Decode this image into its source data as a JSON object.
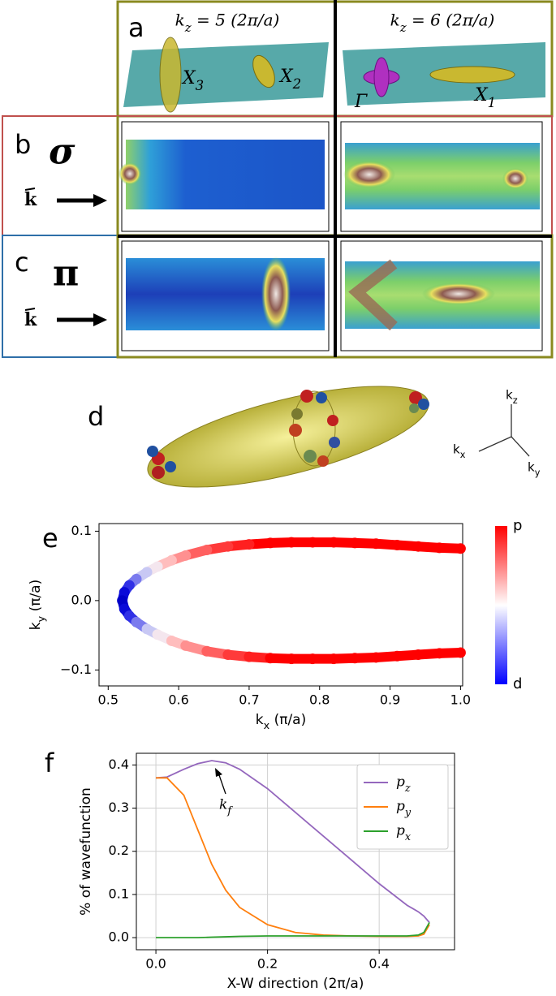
{
  "panels": {
    "a": {
      "label": "a",
      "titles": [
        "k_z = 5 (2π/a)",
        "k_z = 6 (2π/a)"
      ],
      "points": [
        "X_3",
        "X_2",
        "Γ",
        "X_1"
      ]
    },
    "b": {
      "label": "b",
      "symbol": "σ",
      "vector": "k"
    },
    "c": {
      "label": "c",
      "symbol": "π",
      "vector": "k"
    },
    "d": {
      "label": "d",
      "axes": [
        "k_z",
        "k_x",
        "k_y"
      ]
    },
    "e": {
      "label": "e"
    },
    "f": {
      "label": "f"
    }
  },
  "chart_data": [
    {
      "type": "scatter",
      "xlabel": "k_x (π/a)",
      "ylabel": "k_y (π/a)",
      "x": [
        1.0,
        0.97,
        0.94,
        0.91,
        0.88,
        0.85,
        0.82,
        0.79,
        0.76,
        0.73,
        0.7,
        0.67,
        0.64,
        0.61,
        0.59,
        0.57,
        0.555,
        0.54,
        0.53,
        0.523,
        0.52,
        0.523,
        0.53,
        0.54,
        0.555,
        0.57,
        0.59,
        0.61,
        0.64,
        0.67,
        0.7,
        0.73,
        0.76,
        0.79,
        0.82,
        0.85,
        0.88,
        0.91,
        0.94,
        0.97,
        1.0
      ],
      "values": [
        0.075,
        0.076,
        0.078,
        0.08,
        0.082,
        0.083,
        0.084,
        0.084,
        0.084,
        0.083,
        0.081,
        0.078,
        0.073,
        0.065,
        0.058,
        0.049,
        0.041,
        0.031,
        0.022,
        0.012,
        0.0,
        -0.012,
        -0.022,
        -0.031,
        -0.041,
        -0.049,
        -0.058,
        -0.065,
        -0.073,
        -0.078,
        -0.081,
        -0.083,
        -0.084,
        -0.084,
        -0.084,
        -0.083,
        -0.082,
        -0.08,
        -0.078,
        -0.076,
        -0.075
      ],
      "colors": [
        "#ff0000",
        "#ff0000",
        "#ff0000",
        "#ff0000",
        "#ff0000",
        "#ff0000",
        "#ff0000",
        "#ff0000",
        "#ff0000",
        "#ff0000",
        "#ff2020",
        "#ff3a3a",
        "#ff6060",
        "#ff9090",
        "#ffbdbd",
        "#f4e6ee",
        "#c8c8f4",
        "#7a7aee",
        "#3030e6",
        "#0a0ad8",
        "#0000c8",
        "#0a0ad8",
        "#3030e6",
        "#7a7aee",
        "#c8c8f4",
        "#f4e6ee",
        "#ffbdbd",
        "#ff9090",
        "#ff6060",
        "#ff3a3a",
        "#ff2020",
        "#ff0000",
        "#ff0000",
        "#ff0000",
        "#ff0000",
        "#ff0000",
        "#ff0000",
        "#ff0000",
        "#ff0000",
        "#ff0000",
        "#ff0000"
      ],
      "xlim": [
        0.487,
        1.003
      ],
      "xticks": [
        0.5,
        0.6,
        0.7,
        0.8,
        0.9,
        {
          "value": 1,
          "label": "1.0"
        }
      ],
      "ylim": [
        -0.123,
        0.111
      ],
      "yticks": [
        {
          "value": -0.1,
          "label": "−0.1"
        },
        {
          "value": 0,
          "label": "0.0"
        },
        0.1
      ],
      "colorbar": {
        "labels": [
          "p",
          "d"
        ],
        "colors": [
          "#ff0000",
          "#ffffff",
          "#0000ff"
        ]
      }
    },
    {
      "type": "line",
      "xlabel": "X-W direction (2π/a)",
      "ylabel": "% of wavefunction",
      "annotation": "k_f",
      "grid": true,
      "legend": "upper right",
      "x": [
        0,
        0.02,
        0.05,
        0.075,
        0.1,
        0.125,
        0.15,
        0.2,
        0.25,
        0.3,
        0.35,
        0.4,
        0.45,
        0.47,
        0.48,
        0.49
      ],
      "series": [
        {
          "name": "p_z",
          "color": "#9467bd",
          "values": [
            0.37,
            0.372,
            0.39,
            0.403,
            0.41,
            0.405,
            0.39,
            0.345,
            0.29,
            0.235,
            0.18,
            0.125,
            0.075,
            0.06,
            0.05,
            0.035
          ]
        },
        {
          "name": "p_y",
          "color": "#ff7f0e",
          "values": [
            0.37,
            0.37,
            0.33,
            0.25,
            0.17,
            0.11,
            0.07,
            0.03,
            0.012,
            0.006,
            0.004,
            0.003,
            0.003,
            0.004,
            0.008,
            0.03
          ]
        },
        {
          "name": "p_x",
          "color": "#2ca02c",
          "values": [
            0,
            0,
            0,
            0,
            0.001,
            0.002,
            0.003,
            0.004,
            0.004,
            0.004,
            0.004,
            0.004,
            0.004,
            0.006,
            0.012,
            0.035
          ]
        }
      ],
      "xlim": [
        -0.035,
        0.535
      ],
      "xticks": [
        {
          "value": 0,
          "label": "0.0"
        },
        0.2,
        0.4
      ],
      "ylim": [
        -0.028,
        0.427
      ],
      "yticks": [
        {
          "value": 0,
          "label": "0.0"
        },
        0.1,
        0.2,
        0.3,
        0.4
      ]
    }
  ]
}
